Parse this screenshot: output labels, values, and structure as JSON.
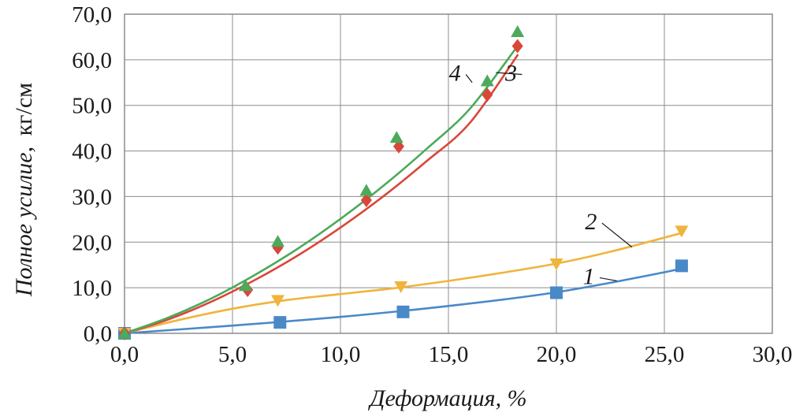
{
  "chart_data": {
    "type": "scatter",
    "xlabel": "Деформация, %",
    "ylabel_italic": "Полное усилие,",
    "ylabel_unit": "кг/см",
    "xlim": [
      0,
      30
    ],
    "ylim": [
      0,
      70
    ],
    "x_ticks": [
      0,
      5,
      10,
      15,
      20,
      25,
      30
    ],
    "y_ticks": [
      0,
      10,
      20,
      30,
      40,
      50,
      60,
      70
    ],
    "x_tick_labels": [
      "0,0",
      "5,0",
      "10,0",
      "15,0",
      "20,0",
      "25,0",
      "30,0"
    ],
    "y_tick_labels": [
      "0,0",
      "10,0",
      "20,0",
      "30,0",
      "40,0",
      "50,0",
      "60,0",
      "70,0"
    ],
    "grid": true,
    "series": [
      {
        "label": "1",
        "marker": "square",
        "color": "#4a89c8",
        "x": [
          0,
          7.2,
          12.9,
          20.0,
          25.8
        ],
        "y": [
          0,
          2.4,
          4.7,
          8.9,
          14.8
        ],
        "fit_x": [
          0,
          5,
          10,
          15,
          20,
          25,
          25.8
        ],
        "fit_y": [
          0,
          1.7,
          3.6,
          6.0,
          9.0,
          13.4,
          14.4
        ]
      },
      {
        "label": "2",
        "marker": "triangle-down",
        "color": "#f0b43c",
        "x": [
          0,
          7.1,
          12.8,
          20.0,
          25.8
        ],
        "y": [
          0,
          7.2,
          10.2,
          15.2,
          22.4
        ],
        "fit_x": [
          0,
          2.5,
          5,
          7.5,
          10,
          12.5,
          15,
          17.5,
          20,
          22.5,
          25.8
        ],
        "fit_y": [
          0,
          2.9,
          5.4,
          7.3,
          8.6,
          9.9,
          11.5,
          13.3,
          15.3,
          17.9,
          22.0
        ]
      },
      {
        "label": "3",
        "marker": "diamond",
        "color": "#d9463a",
        "x": [
          0,
          5.7,
          7.1,
          11.2,
          12.7,
          16.8,
          18.2
        ],
        "y": [
          0,
          9.5,
          18.8,
          29.2,
          41.0,
          52.3,
          63.0
        ],
        "fit_x": [
          0,
          2,
          4,
          6,
          8,
          10,
          12,
          14,
          16,
          18.2
        ],
        "fit_y": [
          0,
          3.0,
          6.9,
          11.6,
          17.0,
          23.2,
          30.1,
          37.8,
          46.2,
          61.0
        ]
      },
      {
        "label": "4",
        "marker": "triangle-up",
        "color": "#4caa5a",
        "x": [
          0,
          5.6,
          7.1,
          11.2,
          12.6,
          16.8,
          18.2
        ],
        "y": [
          0,
          10.5,
          20.2,
          31.4,
          43.0,
          55.4,
          66.2
        ],
        "fit_x": [
          0,
          2,
          4,
          6,
          8,
          10,
          12,
          14,
          16,
          18.2
        ],
        "fit_y": [
          0,
          3.4,
          7.6,
          12.7,
          18.5,
          25.1,
          32.4,
          40.5,
          49.3,
          63.0
        ]
      }
    ],
    "curve_labels": [
      {
        "text": "1",
        "x": 21.5,
        "y": 10.8,
        "to_x": 22.8,
        "to_y": 11.5
      },
      {
        "text": "2",
        "x": 21.6,
        "y": 22.8,
        "to_x": 23.5,
        "to_y": 18.9
      },
      {
        "text": "3",
        "x": 17.9,
        "y": 55.4,
        "to_x": 17.2,
        "to_y": 57.2
      },
      {
        "text": "4",
        "x": 15.3,
        "y": 55.4,
        "to_x": 16.1,
        "to_y": 55.0
      }
    ]
  }
}
